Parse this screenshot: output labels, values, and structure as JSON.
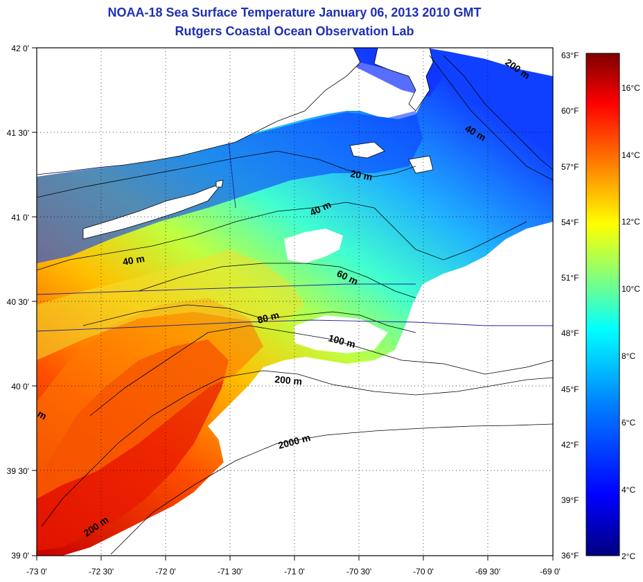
{
  "title": "NOAA-18 Sea Surface Temperature January 06, 2013 2010 GMT",
  "subtitle": "Rutgers Coastal Ocean Observation Lab",
  "map": {
    "lon_ticks": [
      "-73 0'",
      "-72 30'",
      "-72 0'",
      "-71 30'",
      "-71 0'",
      "-70 30'",
      "-70 0'",
      "-69 30'",
      "-69 0'"
    ],
    "lat_ticks": [
      "42 0'",
      "41 30'",
      "41 0'",
      "40 30'",
      "40 0'",
      "39 30'",
      "39 0'"
    ],
    "contour_labels": [
      "200 m",
      "40 m",
      "20 m",
      "40 m",
      "40 m",
      "60 m",
      "80 m",
      "100 m",
      "200 m",
      "2000 m",
      "200 m",
      "m"
    ]
  },
  "colorbar": {
    "fahrenheit": [
      "63°F",
      "60°F",
      "57°F",
      "54°F",
      "51°F",
      "48°F",
      "45°F",
      "42°F",
      "39°F",
      "36°F"
    ],
    "celsius": [
      "16°C",
      "14°C",
      "12°C",
      "10°C",
      "8°C",
      "6°C",
      "4°C",
      "2°C"
    ],
    "colors": [
      "#00007f",
      "#0000ff",
      "#007fff",
      "#00ffff",
      "#7fff7f",
      "#ffff00",
      "#ff7f00",
      "#ff0000",
      "#7f0000"
    ]
  }
}
